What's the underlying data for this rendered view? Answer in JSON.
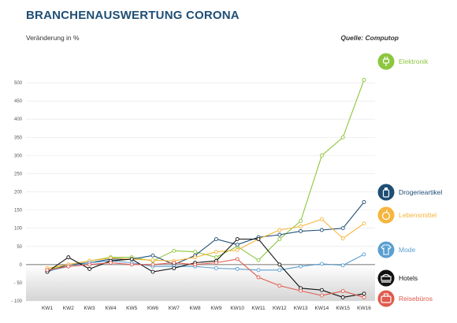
{
  "header": {
    "title": "BRANCHENAUSWERTUNG CORONA",
    "subtitle": "Veränderung in %",
    "source": "Quelle: Computop"
  },
  "chart_data": {
    "type": "line",
    "title": "BRANCHENAUSWERTUNG CORONA",
    "ylabel": "Veränderung in %",
    "ylim": [
      -100,
      550
    ],
    "yticks": [
      -100,
      -50,
      0,
      50,
      100,
      150,
      200,
      250,
      300,
      350,
      400,
      450,
      500
    ],
    "ytick_labels": [
      "- 100",
      "- 50",
      "0",
      "50",
      "100",
      "150",
      "200",
      "250",
      "300",
      "350",
      "400",
      "450",
      "500"
    ],
    "categories": [
      "KW1",
      "KW2",
      "KW3",
      "KW4",
      "KW5",
      "KW6",
      "KW7",
      "KW8",
      "KW9",
      "KW10",
      "KW11",
      "KW12",
      "KW13",
      "KW14",
      "KW15",
      "KW16"
    ],
    "grid": true,
    "legend_position": "right",
    "series": [
      {
        "name": "Elektronik",
        "color": "#8dc63f",
        "icon": "plug-icon",
        "values": [
          -15,
          0,
          10,
          20,
          20,
          10,
          38,
          35,
          20,
          50,
          12,
          70,
          120,
          300,
          350,
          508
        ]
      },
      {
        "name": "Drogerieartikel",
        "color": "#1f4e75",
        "icon": "bottle-icon",
        "values": [
          -20,
          0,
          5,
          15,
          15,
          25,
          0,
          25,
          70,
          55,
          75,
          82,
          92,
          95,
          100,
          172
        ]
      },
      {
        "name": "Lebensmittel",
        "color": "#f6b53c",
        "icon": "apple-icon",
        "values": [
          -10,
          0,
          10,
          18,
          15,
          12,
          10,
          20,
          35,
          40,
          70,
          95,
          105,
          125,
          72,
          113
        ]
      },
      {
        "name": "Mode",
        "color": "#5a9fd1",
        "icon": "shirt-icon",
        "values": [
          -18,
          -5,
          5,
          10,
          5,
          -5,
          -5,
          -5,
          -10,
          -12,
          -15,
          -15,
          -5,
          2,
          -2,
          28
        ]
      },
      {
        "name": "Hotels",
        "color": "#111111",
        "icon": "bed-icon",
        "values": [
          -20,
          20,
          -12,
          10,
          15,
          -20,
          -10,
          5,
          10,
          70,
          70,
          0,
          -65,
          -70,
          -90,
          -80
        ]
      },
      {
        "name": "Reisebüros",
        "color": "#e05a4e",
        "icon": "suitcase-icon",
        "values": [
          -15,
          -5,
          0,
          5,
          0,
          0,
          5,
          0,
          5,
          15,
          -35,
          -58,
          -72,
          -85,
          -73,
          -90
        ]
      }
    ]
  }
}
